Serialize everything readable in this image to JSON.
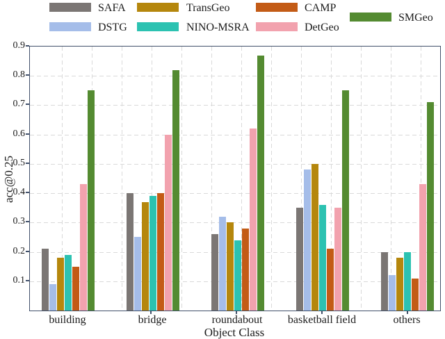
{
  "figure": {
    "xlabel": "Object Class",
    "ylabel": "acc@0.25"
  },
  "chart_data": {
    "type": "bar",
    "title": "",
    "xlabel": "Object Class",
    "ylabel": "acc@0.25",
    "ylim": [
      0,
      0.9
    ],
    "yticks": [
      0.1,
      0.2,
      0.3,
      0.4,
      0.5,
      0.6,
      0.7,
      0.8,
      0.9
    ],
    "grid": "dashed light-gray horizontal and vertical",
    "legend_position": "top-outside",
    "axis_color": "#41506a",
    "categories": [
      "building",
      "bridge",
      "roundabout",
      "basketball field",
      "others"
    ],
    "series": [
      {
        "name": "SAFA",
        "color": "#7b7674",
        "values": [
          0.21,
          0.4,
          0.26,
          0.35,
          0.2
        ]
      },
      {
        "name": "DSTG",
        "color": "#a5bde9",
        "values": [
          0.09,
          0.25,
          0.32,
          0.48,
          0.12
        ]
      },
      {
        "name": "TransGeo",
        "color": "#b5870d",
        "values": [
          0.18,
          0.37,
          0.3,
          0.5,
          0.18
        ]
      },
      {
        "name": "NINO-MSRA",
        "color": "#2cc2b1",
        "values": [
          0.19,
          0.39,
          0.24,
          0.36,
          0.2
        ]
      },
      {
        "name": "CAMP",
        "color": "#c35b16",
        "values": [
          0.15,
          0.4,
          0.28,
          0.21,
          0.11
        ]
      },
      {
        "name": "DetGeo",
        "color": "#f2a2ae",
        "values": [
          0.43,
          0.6,
          0.62,
          0.35,
          0.43
        ]
      },
      {
        "name": "SMGeo",
        "color": "#548b31",
        "values": [
          0.75,
          0.82,
          0.87,
          0.75,
          0.71
        ]
      }
    ]
  }
}
